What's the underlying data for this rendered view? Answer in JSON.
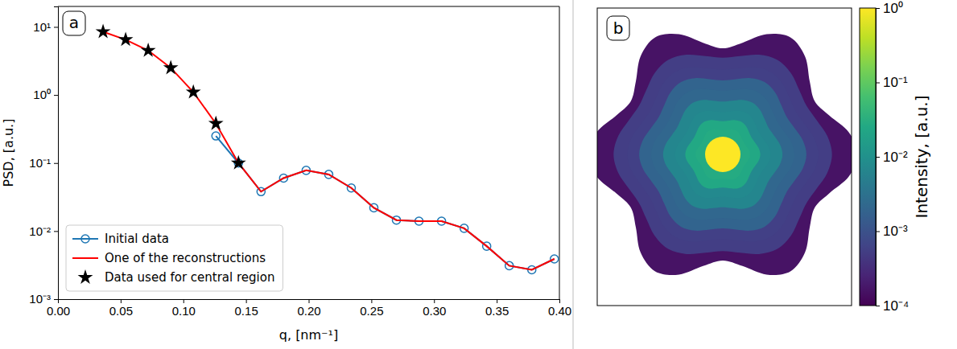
{
  "chart_data": [
    {
      "type": "line",
      "panel": "a",
      "x_label": "q, [nm⁻¹]",
      "y_label": "PSD, [a.u.]",
      "x": [
        0.036,
        0.054,
        0.072,
        0.09,
        0.108,
        0.126,
        0.144,
        0.162,
        0.18,
        0.198,
        0.216,
        0.234,
        0.252,
        0.27,
        0.288,
        0.306,
        0.324,
        0.342,
        0.36,
        0.378,
        0.396
      ],
      "series": [
        {
          "name": "Initial data",
          "color": "#1f77b4",
          "marker": "circle",
          "line_style": "solid",
          "values": [
            null,
            null,
            null,
            null,
            null,
            0.25,
            0.1,
            0.038,
            0.06,
            0.078,
            0.068,
            0.043,
            0.022,
            0.0145,
            0.014,
            0.014,
            0.011,
            0.006,
            0.0031,
            0.0027,
            0.0039
          ]
        },
        {
          "name": "One of the reconstructions",
          "color": "#ff0000",
          "marker": "none",
          "line_style": "solid",
          "values": [
            8.5,
            6.5,
            4.5,
            2.5,
            1.1,
            0.38,
            0.1,
            0.038,
            0.06,
            0.078,
            0.068,
            0.043,
            0.022,
            0.0145,
            0.014,
            0.014,
            0.011,
            0.006,
            0.0031,
            0.0027,
            0.0039
          ]
        },
        {
          "name": "Data used for central region",
          "color": "#000000",
          "marker": "star",
          "line_style": "none",
          "values": [
            8.5,
            6.5,
            4.5,
            2.5,
            1.1,
            0.38,
            0.1,
            null,
            null,
            null,
            null,
            null,
            null,
            null,
            null,
            null,
            null,
            null,
            null,
            null,
            null
          ]
        }
      ],
      "xlim": [
        0,
        0.4
      ],
      "xticks": [
        {
          "value": 0,
          "label": "0.00"
        },
        {
          "value": 0.05,
          "label": "0.05"
        },
        {
          "value": 0.1,
          "label": "0.10"
        },
        {
          "value": 0.15,
          "label": "0.15"
        },
        {
          "value": 0.2,
          "label": "0.20"
        },
        {
          "value": 0.25,
          "label": "0.25"
        },
        {
          "value": 0.3,
          "label": "0.30"
        },
        {
          "value": 0.35,
          "label": "0.35"
        },
        {
          "value": 0.4,
          "label": "0.40"
        }
      ],
      "ylim": [
        0.001,
        20
      ],
      "yticks": [
        {
          "value": 0.001,
          "label": "10⁻³"
        },
        {
          "value": 0.01,
          "label": "10⁻²"
        },
        {
          "value": 0.1,
          "label": "10⁻¹"
        },
        {
          "value": 1,
          "label": "10⁰"
        },
        {
          "value": 10,
          "label": "10¹"
        }
      ],
      "log": "y",
      "legend": "lower left"
    },
    {
      "type": "image",
      "panel": "b",
      "colorbar": {
        "label": "Intensity, [a.u.]",
        "range": [
          0.0001,
          1
        ],
        "ticks": [
          {
            "value": 0.0001,
            "label": "10⁻⁴"
          },
          {
            "value": 0.001,
            "label": "10⁻³"
          },
          {
            "value": 0.01,
            "label": "10⁻²"
          },
          {
            "value": 0.1,
            "label": "10⁻¹"
          },
          {
            "value": 1,
            "label": "10⁰"
          }
        ]
      }
    }
  ]
}
